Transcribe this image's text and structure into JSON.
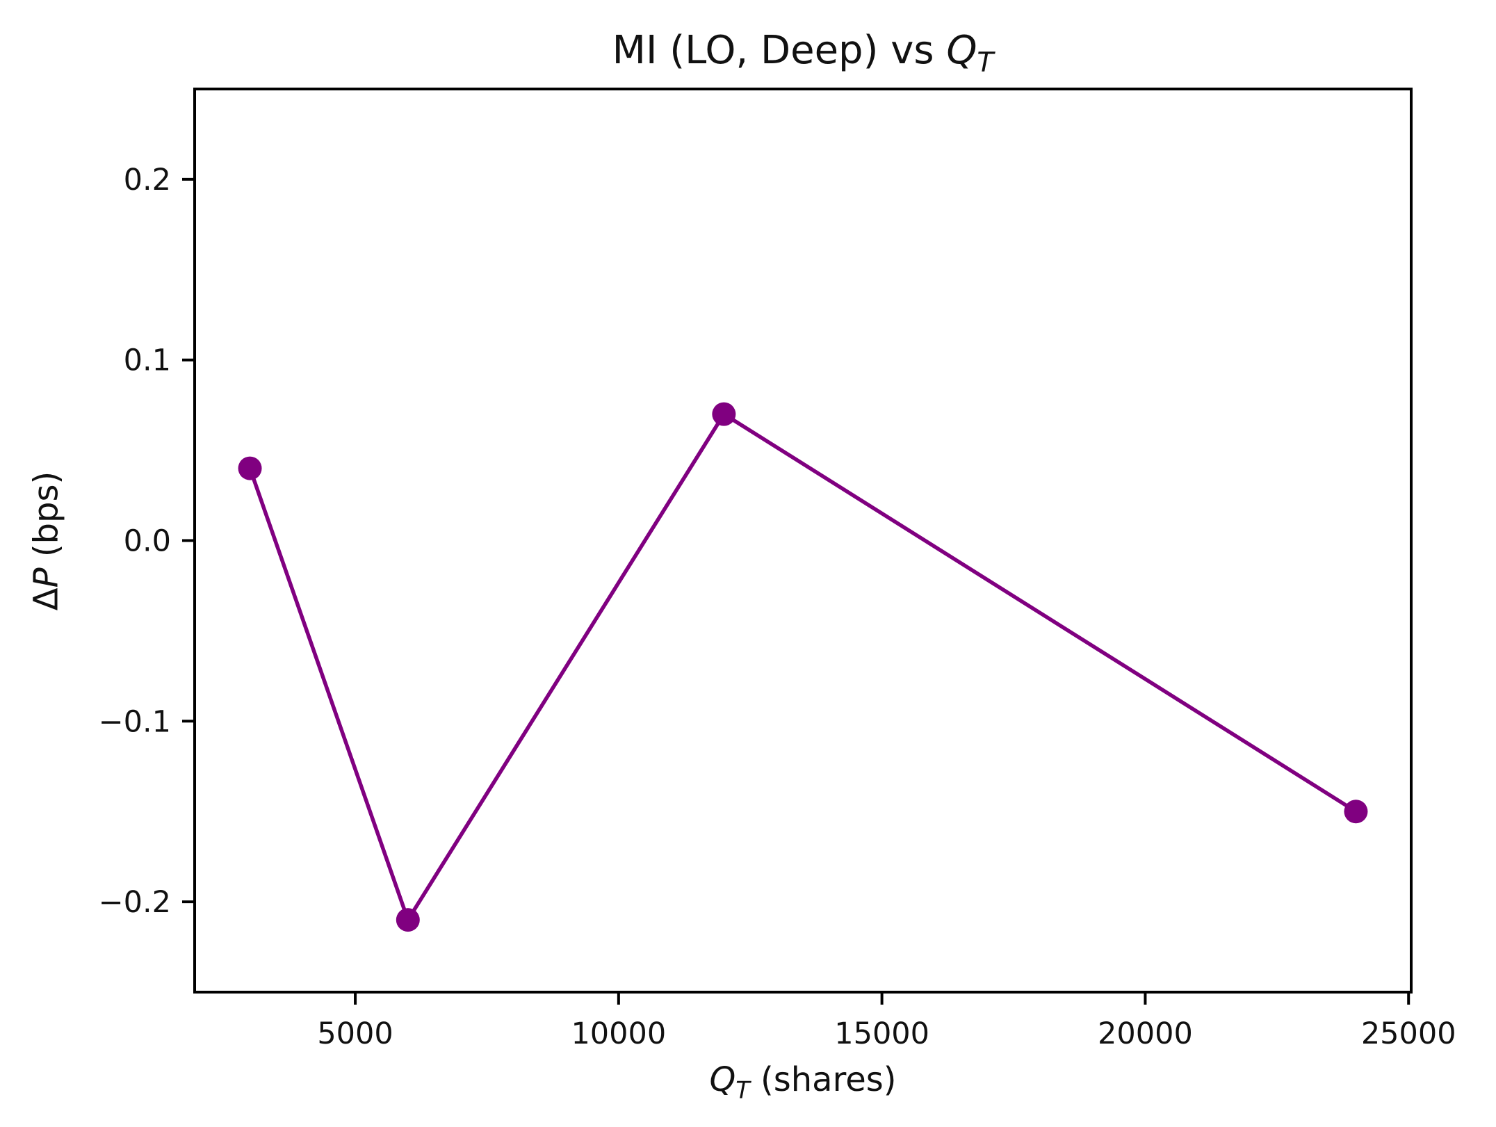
{
  "figure": {
    "title": {
      "prefix": "MI (LO, Deep) vs ",
      "var": "Q",
      "var_sub": "T"
    },
    "xlabel": {
      "var": "Q",
      "var_sub": "T",
      "suffix": " (shares)"
    },
    "ylabel": {
      "delta": "Δ",
      "var": "P",
      "suffix": " (bps)"
    }
  },
  "chart_data": {
    "type": "line",
    "title": "MI (LO, Deep) vs Q_T",
    "xlabel": "Q_T (shares)",
    "ylabel": "ΔP (bps)",
    "series": [
      {
        "name": "MI (LO, Deep)",
        "x": [
          3000,
          6000,
          12000,
          24000
        ],
        "y": [
          0.04,
          -0.21,
          0.07,
          -0.15
        ]
      }
    ],
    "xlim": [
      1950,
      25050
    ],
    "ylim": [
      -0.25,
      0.25
    ],
    "xticks": [
      5000,
      10000,
      15000,
      20000,
      25000
    ],
    "xtick_labels": [
      "5000",
      "10000",
      "15000",
      "20000",
      "25000"
    ],
    "yticks": [
      -0.2,
      -0.1,
      0.0,
      0.1,
      0.2
    ],
    "ytick_labels": [
      "−0.2",
      "−0.1",
      "0.0",
      "0.1",
      "0.2"
    ],
    "line_color": "#800080",
    "marker": "circle",
    "grid": false,
    "legend": false,
    "colors": {
      "spine": "#000000",
      "text": "#111111",
      "background": "#ffffff"
    }
  }
}
